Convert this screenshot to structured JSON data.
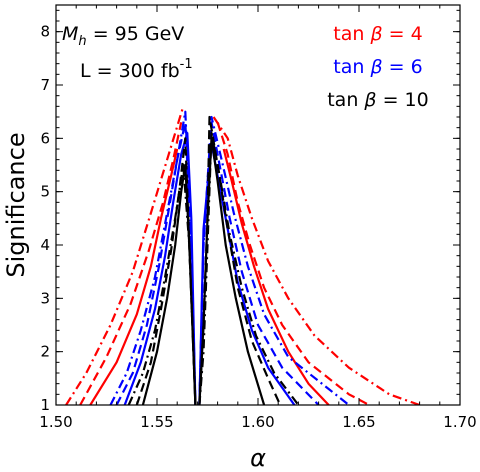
{
  "chart_data": {
    "type": "line",
    "title": "",
    "xlabel": "α",
    "ylabel": "Significance",
    "xlim": [
      1.5,
      1.7
    ],
    "ylim": [
      1,
      8.5
    ],
    "xticks": [
      "1.50",
      "1.55",
      "1.60",
      "1.65",
      "1.70"
    ],
    "yticks": [
      "1",
      "2",
      "3",
      "4",
      "5",
      "6",
      "7",
      "8"
    ],
    "grid": false,
    "annotations": {
      "mass_prefix": "M",
      "mass_sub": "h",
      "mass_value": " = 95 GeV",
      "lumi_prefix": "L = 300 fb",
      "lumi_sup": "-1"
    },
    "legend": {
      "position": "top-right",
      "entries": [
        {
          "prefix": "tan ",
          "greek": "β",
          "suffix": " = 4",
          "color": "#ff0000"
        },
        {
          "prefix": "tan ",
          "greek": "β",
          "suffix": " = 6",
          "color": "#0000ff"
        },
        {
          "prefix": "tan ",
          "greek": "β",
          "suffix": " = 10",
          "color": "#000000"
        }
      ]
    },
    "line_styles": {
      "solid": "",
      "dashed": "9,5",
      "dashdot": "9,4,2,4"
    },
    "series": [
      {
        "tanb": "4",
        "color": "#ff0000",
        "style": "solid",
        "left": [
          [
            1.517,
            1.0
          ],
          [
            1.53,
            1.8
          ],
          [
            1.54,
            2.7
          ],
          [
            1.547,
            3.6
          ],
          [
            1.552,
            4.5
          ],
          [
            1.557,
            5.3
          ],
          [
            1.56,
            5.8
          ]
        ],
        "right": [
          [
            1.583,
            5.8
          ],
          [
            1.587,
            5.2
          ],
          [
            1.592,
            4.4
          ],
          [
            1.598,
            3.6
          ],
          [
            1.605,
            2.8
          ],
          [
            1.615,
            2.0
          ],
          [
            1.625,
            1.4
          ],
          [
            1.635,
            1.0
          ]
        ]
      },
      {
        "tanb": "4",
        "color": "#ff0000",
        "style": "dashed",
        "left": [
          [
            1.512,
            1.0
          ],
          [
            1.525,
            1.9
          ],
          [
            1.537,
            2.9
          ],
          [
            1.546,
            3.9
          ],
          [
            1.553,
            4.8
          ],
          [
            1.558,
            5.6
          ],
          [
            1.562,
            6.3
          ]
        ],
        "right": [
          [
            1.58,
            6.3
          ],
          [
            1.585,
            5.7
          ],
          [
            1.59,
            4.8
          ],
          [
            1.596,
            4.0
          ],
          [
            1.603,
            3.2
          ],
          [
            1.612,
            2.5
          ],
          [
            1.625,
            1.8
          ],
          [
            1.645,
            1.2
          ],
          [
            1.655,
            1.0
          ]
        ]
      },
      {
        "tanb": "4",
        "color": "#ff0000",
        "style": "dashdot",
        "left": [
          [
            1.505,
            1.0
          ],
          [
            1.515,
            1.6
          ],
          [
            1.527,
            2.5
          ],
          [
            1.538,
            3.5
          ],
          [
            1.547,
            4.6
          ],
          [
            1.555,
            5.6
          ],
          [
            1.563,
            6.6
          ]
        ],
        "right": [
          [
            1.578,
            6.4
          ],
          [
            1.585,
            6.0
          ],
          [
            1.59,
            5.3
          ],
          [
            1.597,
            4.5
          ],
          [
            1.605,
            3.7
          ],
          [
            1.615,
            3.0
          ],
          [
            1.628,
            2.3
          ],
          [
            1.645,
            1.7
          ],
          [
            1.665,
            1.2
          ],
          [
            1.68,
            1.0
          ]
        ]
      },
      {
        "tanb": "6",
        "color": "#0000ff",
        "style": "solid",
        "left": [
          [
            1.534,
            1.0
          ],
          [
            1.542,
            1.8
          ],
          [
            1.549,
            2.8
          ],
          [
            1.554,
            3.8
          ],
          [
            1.558,
            4.8
          ],
          [
            1.562,
            5.7
          ],
          [
            1.565,
            6.1
          ],
          [
            1.567,
            4.5
          ],
          [
            1.569,
            1.0
          ]
        ],
        "right": [
          [
            1.571,
            1.0
          ],
          [
            1.573,
            4.3
          ],
          [
            1.577,
            5.9
          ],
          [
            1.58,
            5.3
          ],
          [
            1.585,
            4.3
          ],
          [
            1.59,
            3.3
          ],
          [
            1.597,
            2.4
          ],
          [
            1.605,
            1.7
          ],
          [
            1.618,
            1.0
          ]
        ]
      },
      {
        "tanb": "6",
        "color": "#0000ff",
        "style": "dashed",
        "left": [
          [
            1.53,
            1.0
          ],
          [
            1.538,
            1.6
          ],
          [
            1.545,
            2.5
          ],
          [
            1.551,
            3.6
          ],
          [
            1.556,
            4.7
          ],
          [
            1.56,
            5.6
          ],
          [
            1.564,
            6.3
          ],
          [
            1.567,
            4.0
          ],
          [
            1.569,
            1.0
          ]
        ],
        "right": [
          [
            1.571,
            1.0
          ],
          [
            1.573,
            4.0
          ],
          [
            1.577,
            6.3
          ],
          [
            1.581,
            5.5
          ],
          [
            1.586,
            4.5
          ],
          [
            1.592,
            3.5
          ],
          [
            1.6,
            2.5
          ],
          [
            1.612,
            1.7
          ],
          [
            1.63,
            1.0
          ]
        ]
      },
      {
        "tanb": "6",
        "color": "#0000ff",
        "style": "dashdot",
        "left": [
          [
            1.527,
            1.0
          ],
          [
            1.535,
            1.6
          ],
          [
            1.542,
            2.4
          ],
          [
            1.549,
            3.4
          ],
          [
            1.555,
            4.6
          ],
          [
            1.56,
            5.6
          ],
          [
            1.564,
            6.5
          ],
          [
            1.567,
            4.0
          ],
          [
            1.569,
            1.0
          ]
        ],
        "right": [
          [
            1.571,
            1.0
          ],
          [
            1.573,
            4.0
          ],
          [
            1.577,
            6.4
          ],
          [
            1.582,
            5.6
          ],
          [
            1.588,
            4.6
          ],
          [
            1.595,
            3.6
          ],
          [
            1.603,
            2.7
          ],
          [
            1.615,
            1.9
          ],
          [
            1.635,
            1.3
          ],
          [
            1.645,
            1.0
          ]
        ]
      },
      {
        "tanb": "10",
        "color": "#000000",
        "style": "solid",
        "left": [
          [
            1.543,
            1.0
          ],
          [
            1.55,
            2.0
          ],
          [
            1.555,
            3.0
          ],
          [
            1.559,
            4.0
          ],
          [
            1.562,
            5.0
          ],
          [
            1.564,
            5.5
          ],
          [
            1.566,
            4.0
          ],
          [
            1.568,
            2.0
          ],
          [
            1.569,
            1.0
          ]
        ],
        "right": [
          [
            1.571,
            1.0
          ],
          [
            1.573,
            2.5
          ],
          [
            1.575,
            4.5
          ],
          [
            1.577,
            6.0
          ],
          [
            1.58,
            5.2
          ],
          [
            1.584,
            4.0
          ],
          [
            1.589,
            3.0
          ],
          [
            1.595,
            2.0
          ],
          [
            1.603,
            1.0
          ]
        ]
      },
      {
        "tanb": "10",
        "color": "#000000",
        "style": "dashed",
        "left": [
          [
            1.54,
            1.0
          ],
          [
            1.547,
            1.8
          ],
          [
            1.552,
            2.8
          ],
          [
            1.557,
            3.9
          ],
          [
            1.561,
            5.0
          ],
          [
            1.564,
            6.0
          ],
          [
            1.566,
            4.0
          ],
          [
            1.568,
            2.0
          ],
          [
            1.569,
            1.0
          ]
        ],
        "right": [
          [
            1.571,
            1.0
          ],
          [
            1.573,
            2.5
          ],
          [
            1.575,
            4.5
          ],
          [
            1.576,
            6.4
          ],
          [
            1.58,
            5.5
          ],
          [
            1.585,
            4.3
          ],
          [
            1.59,
            3.2
          ],
          [
            1.597,
            2.2
          ],
          [
            1.605,
            1.5
          ],
          [
            1.611,
            1.0
          ]
        ]
      },
      {
        "tanb": "10",
        "color": "#000000",
        "style": "dashdot",
        "left": [
          [
            1.536,
            1.0
          ],
          [
            1.543,
            1.6
          ],
          [
            1.549,
            2.4
          ],
          [
            1.554,
            3.4
          ],
          [
            1.559,
            4.5
          ],
          [
            1.563,
            5.5
          ],
          [
            1.566,
            4.0
          ],
          [
            1.568,
            2.0
          ],
          [
            1.569,
            1.0
          ]
        ],
        "right": [
          [
            1.571,
            1.0
          ],
          [
            1.573,
            2.0
          ],
          [
            1.575,
            4.0
          ],
          [
            1.577,
            6.1
          ],
          [
            1.581,
            5.3
          ],
          [
            1.586,
            4.2
          ],
          [
            1.592,
            3.2
          ],
          [
            1.599,
            2.3
          ],
          [
            1.608,
            1.6
          ],
          [
            1.62,
            1.0
          ]
        ]
      }
    ]
  }
}
